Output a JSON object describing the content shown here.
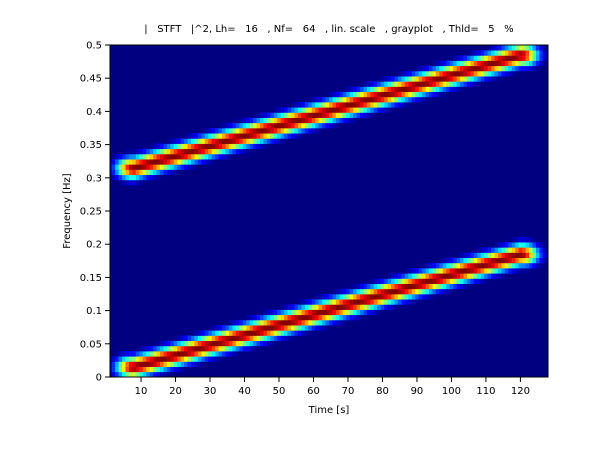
{
  "chart_data": {
    "type": "heatmap",
    "title": "|   STFT   |^2, Lh=   16   , Nf=   64   , lin. scale   , grayplot   , Thld=   5   %",
    "xlabel": "Time [s]",
    "ylabel": "Frequency [Hz]",
    "xlim": [
      1,
      128
    ],
    "ylim": [
      0,
      0.5
    ],
    "x_ticks": [
      10,
      20,
      30,
      40,
      50,
      60,
      70,
      80,
      90,
      100,
      110,
      120
    ],
    "y_ticks": [
      0,
      0.05,
      0.1,
      0.15,
      0.2,
      0.25,
      0.3,
      0.35,
      0.4,
      0.45,
      0.5
    ],
    "y_tick_labels": [
      "0",
      "0.05",
      "0.1",
      "0.15",
      "0.2",
      "0.25",
      "0.3",
      "0.35",
      "0.4",
      "0.45",
      "0.5"
    ],
    "colormap": "jet",
    "threshold_percent": 5,
    "ridges": [
      {
        "x": [
          8,
          120
        ],
        "y": [
          0.015,
          0.185
        ]
      },
      {
        "x": [
          8,
          120
        ],
        "y": [
          0.315,
          0.485
        ]
      }
    ],
    "grid": false
  }
}
